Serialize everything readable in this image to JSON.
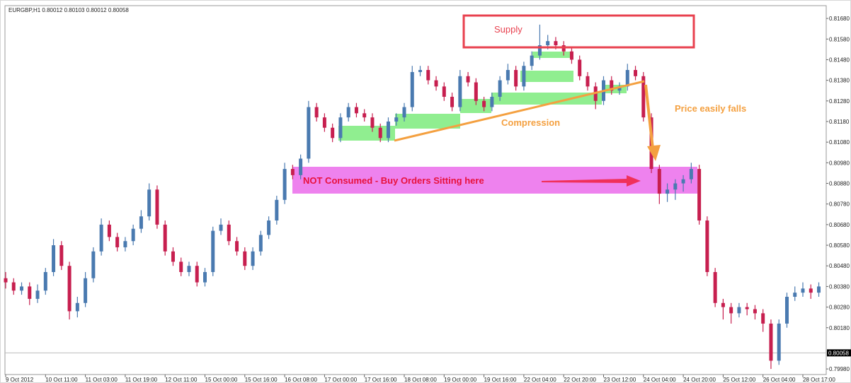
{
  "chart_data": {
    "type": "candlestick",
    "title": "EURGBP,H1  0.80012 0.80103 0.80012 0.80058",
    "up_color": "#4a7ab0",
    "down_color": "#c71f4f",
    "ylim": [
      0.79953,
      0.81742
    ],
    "yticks": [
      {
        "value": 0.8168,
        "label": "0.81680"
      },
      {
        "value": 0.8158,
        "label": "0.81580"
      },
      {
        "value": 0.8148,
        "label": "0.81480"
      },
      {
        "value": 0.8138,
        "label": "0.81380"
      },
      {
        "value": 0.8128,
        "label": "0.81280"
      },
      {
        "value": 0.8118,
        "label": "0.81180"
      },
      {
        "value": 0.8108,
        "label": "0.81080"
      },
      {
        "value": 0.8098,
        "label": "0.80980"
      },
      {
        "value": 0.8088,
        "label": "0.80880"
      },
      {
        "value": 0.8078,
        "label": "0.80780"
      },
      {
        "value": 0.8068,
        "label": "0.80680"
      },
      {
        "value": 0.8058,
        "label": "0.80580"
      },
      {
        "value": 0.8048,
        "label": "0.80480"
      },
      {
        "value": 0.8038,
        "label": "0.80380"
      },
      {
        "value": 0.8028,
        "label": "0.80280"
      },
      {
        "value": 0.8018,
        "label": "0.80180"
      },
      {
        "value": 0.7998,
        "label": "0.79980"
      }
    ],
    "current_price": {
      "value": 0.80058,
      "label": "0.80058"
    },
    "annotations": [
      "Supply",
      "Compression",
      "Price easily falls",
      "NOT Consumed - Buy Orders Sitting here"
    ],
    "categories": [
      "9 Oct 2012",
      null,
      null,
      null,
      null,
      "10 Oct 11:00",
      null,
      null,
      null,
      null,
      "11 Oct 03:00",
      null,
      null,
      null,
      null,
      "11 Oct 19:00",
      null,
      null,
      null,
      null,
      "12 Oct 11:00",
      null,
      null,
      null,
      null,
      "15 Oct 00:00",
      null,
      null,
      null,
      null,
      "15 Oct 16:00",
      null,
      null,
      null,
      null,
      "16 Oct 08:00",
      null,
      null,
      null,
      null,
      "17 Oct 00:00",
      null,
      null,
      null,
      null,
      "17 Oct 16:00",
      null,
      null,
      null,
      null,
      "18 Oct 08:00",
      null,
      null,
      null,
      null,
      "19 Oct 00:00",
      null,
      null,
      null,
      null,
      "19 Oct 16:00",
      null,
      null,
      null,
      null,
      "22 Oct 04:00",
      null,
      null,
      null,
      null,
      "22 Oct 20:00",
      null,
      null,
      null,
      null,
      "23 Oct 12:00",
      null,
      null,
      null,
      null,
      "24 Oct 04:00",
      null,
      null,
      null,
      null,
      "24 Oct 20:00",
      null,
      null,
      null,
      null,
      "25 Oct 12:00",
      null,
      null,
      null,
      null,
      "26 Oct 04:00",
      null,
      null,
      null,
      null,
      "28 Oct 17:00",
      null,
      null
    ],
    "candles": [
      [
        0.8042,
        0.8045,
        0.8037,
        0.804
      ],
      [
        0.804,
        0.8042,
        0.8034,
        0.8036
      ],
      [
        0.8036,
        0.804,
        0.8034,
        0.8038
      ],
      [
        0.8038,
        0.804,
        0.8029,
        0.8032
      ],
      [
        0.8032,
        0.8039,
        0.803,
        0.8036
      ],
      [
        0.8036,
        0.8047,
        0.8034,
        0.8045
      ],
      [
        0.8045,
        0.8061,
        0.8043,
        0.8058
      ],
      [
        0.8058,
        0.806,
        0.8046,
        0.8048
      ],
      [
        0.8048,
        0.805,
        0.8022,
        0.8026
      ],
      [
        0.8026,
        0.8033,
        0.8023,
        0.803
      ],
      [
        0.803,
        0.8045,
        0.8028,
        0.8042
      ],
      [
        0.8042,
        0.8057,
        0.804,
        0.8055
      ],
      [
        0.8055,
        0.8071,
        0.8053,
        0.8068
      ],
      [
        0.8068,
        0.807,
        0.806,
        0.8062
      ],
      [
        0.8062,
        0.8064,
        0.8055,
        0.8057
      ],
      [
        0.8057,
        0.8062,
        0.8055,
        0.806
      ],
      [
        0.806,
        0.8068,
        0.8058,
        0.8066
      ],
      [
        0.8066,
        0.8075,
        0.8064,
        0.8072
      ],
      [
        0.8072,
        0.8088,
        0.807,
        0.8085
      ],
      [
        0.8085,
        0.8087,
        0.8066,
        0.8068
      ],
      [
        0.8068,
        0.807,
        0.8053,
        0.8055
      ],
      [
        0.8055,
        0.8057,
        0.8048,
        0.805
      ],
      [
        0.805,
        0.8052,
        0.8043,
        0.8045
      ],
      [
        0.8045,
        0.805,
        0.8043,
        0.8048
      ],
      [
        0.8048,
        0.805,
        0.8038,
        0.804
      ],
      [
        0.804,
        0.8047,
        0.8038,
        0.8045
      ],
      [
        0.8045,
        0.8067,
        0.8043,
        0.8065
      ],
      [
        0.8065,
        0.8071,
        0.8063,
        0.8068
      ],
      [
        0.8068,
        0.807,
        0.8058,
        0.806
      ],
      [
        0.806,
        0.8062,
        0.8053,
        0.8055
      ],
      [
        0.8055,
        0.8057,
        0.8046,
        0.8048
      ],
      [
        0.8048,
        0.8057,
        0.8046,
        0.8055
      ],
      [
        0.8055,
        0.8065,
        0.8053,
        0.8063
      ],
      [
        0.8063,
        0.8072,
        0.8061,
        0.807
      ],
      [
        0.807,
        0.8082,
        0.8068,
        0.808
      ],
      [
        0.808,
        0.8098,
        0.8078,
        0.8095
      ],
      [
        0.8095,
        0.8097,
        0.809,
        0.8092
      ],
      [
        0.8092,
        0.8102,
        0.809,
        0.81
      ],
      [
        0.81,
        0.8128,
        0.8098,
        0.8125
      ],
      [
        0.8125,
        0.8127,
        0.8118,
        0.812
      ],
      [
        0.812,
        0.8122,
        0.8113,
        0.8115
      ],
      [
        0.8115,
        0.8117,
        0.8108,
        0.811
      ],
      [
        0.811,
        0.8122,
        0.8108,
        0.812
      ],
      [
        0.812,
        0.8127,
        0.8118,
        0.8125
      ],
      [
        0.8125,
        0.8127,
        0.812,
        0.8122
      ],
      [
        0.8122,
        0.8124,
        0.8118,
        0.812
      ],
      [
        0.812,
        0.8122,
        0.8113,
        0.8115
      ],
      [
        0.8115,
        0.8117,
        0.8108,
        0.811
      ],
      [
        0.811,
        0.812,
        0.8108,
        0.8118
      ],
      [
        0.8118,
        0.8122,
        0.8116,
        0.812
      ],
      [
        0.812,
        0.8127,
        0.8118,
        0.8125
      ],
      [
        0.8125,
        0.8145,
        0.8123,
        0.8142
      ],
      [
        0.8142,
        0.8145,
        0.814,
        0.8143
      ],
      [
        0.8143,
        0.8145,
        0.8136,
        0.8138
      ],
      [
        0.8138,
        0.814,
        0.8133,
        0.8135
      ],
      [
        0.8135,
        0.8137,
        0.8128,
        0.813
      ],
      [
        0.813,
        0.8132,
        0.8123,
        0.8125
      ],
      [
        0.8125,
        0.8143,
        0.8123,
        0.814
      ],
      [
        0.814,
        0.8142,
        0.8135,
        0.8137
      ],
      [
        0.8137,
        0.8139,
        0.8126,
        0.8128
      ],
      [
        0.8128,
        0.813,
        0.8123,
        0.8125
      ],
      [
        0.8125,
        0.8132,
        0.8123,
        0.813
      ],
      [
        0.813,
        0.814,
        0.8128,
        0.8138
      ],
      [
        0.8138,
        0.8146,
        0.8136,
        0.8143
      ],
      [
        0.8143,
        0.8145,
        0.8133,
        0.8135
      ],
      [
        0.8135,
        0.8147,
        0.8133,
        0.8145
      ],
      [
        0.8145,
        0.8152,
        0.8143,
        0.815
      ],
      [
        0.815,
        0.8165,
        0.8148,
        0.8155
      ],
      [
        0.8155,
        0.816,
        0.8153,
        0.8157
      ],
      [
        0.8157,
        0.8159,
        0.8153,
        0.8155
      ],
      [
        0.8155,
        0.8157,
        0.815,
        0.8152
      ],
      [
        0.8152,
        0.8154,
        0.8146,
        0.8148
      ],
      [
        0.8148,
        0.815,
        0.8138,
        0.814
      ],
      [
        0.814,
        0.8142,
        0.8133,
        0.8135
      ],
      [
        0.8135,
        0.8137,
        0.8124,
        0.8128
      ],
      [
        0.8128,
        0.814,
        0.8126,
        0.8138
      ],
      [
        0.8138,
        0.814,
        0.8131,
        0.8133
      ],
      [
        0.8133,
        0.8137,
        0.8131,
        0.8135
      ],
      [
        0.8135,
        0.8146,
        0.8133,
        0.8143
      ],
      [
        0.8143,
        0.8145,
        0.8138,
        0.814
      ],
      [
        0.814,
        0.8142,
        0.8118,
        0.812
      ],
      [
        0.812,
        0.8122,
        0.8093,
        0.8095
      ],
      [
        0.8095,
        0.8097,
        0.8078,
        0.8083
      ],
      [
        0.8083,
        0.8088,
        0.8079,
        0.8085
      ],
      [
        0.8085,
        0.809,
        0.808,
        0.8088
      ],
      [
        0.8088,
        0.8092,
        0.8084,
        0.809
      ],
      [
        0.809,
        0.8098,
        0.8088,
        0.8095
      ],
      [
        0.8095,
        0.8097,
        0.8068,
        0.807
      ],
      [
        0.807,
        0.8072,
        0.8043,
        0.8045
      ],
      [
        0.8045,
        0.8047,
        0.8028,
        0.803
      ],
      [
        0.803,
        0.8032,
        0.8022,
        0.8028
      ],
      [
        0.8028,
        0.803,
        0.802,
        0.8025
      ],
      [
        0.8025,
        0.803,
        0.8023,
        0.8028
      ],
      [
        0.8028,
        0.803,
        0.8024,
        0.8027
      ],
      [
        0.8027,
        0.8029,
        0.8022,
        0.8025
      ],
      [
        0.8025,
        0.8027,
        0.8016,
        0.802
      ],
      [
        0.802,
        0.8022,
        0.7998,
        0.8002
      ],
      [
        0.8002,
        0.8022,
        0.8,
        0.802
      ],
      [
        0.802,
        0.8035,
        0.8018,
        0.8033
      ],
      [
        0.8033,
        0.8038,
        0.8031,
        0.8035
      ],
      [
        0.8035,
        0.804,
        0.8033,
        0.8037
      ],
      [
        0.8037,
        0.8039,
        0.8032,
        0.8035
      ],
      [
        0.8035,
        0.804,
        0.8033,
        0.8038
      ]
    ]
  }
}
